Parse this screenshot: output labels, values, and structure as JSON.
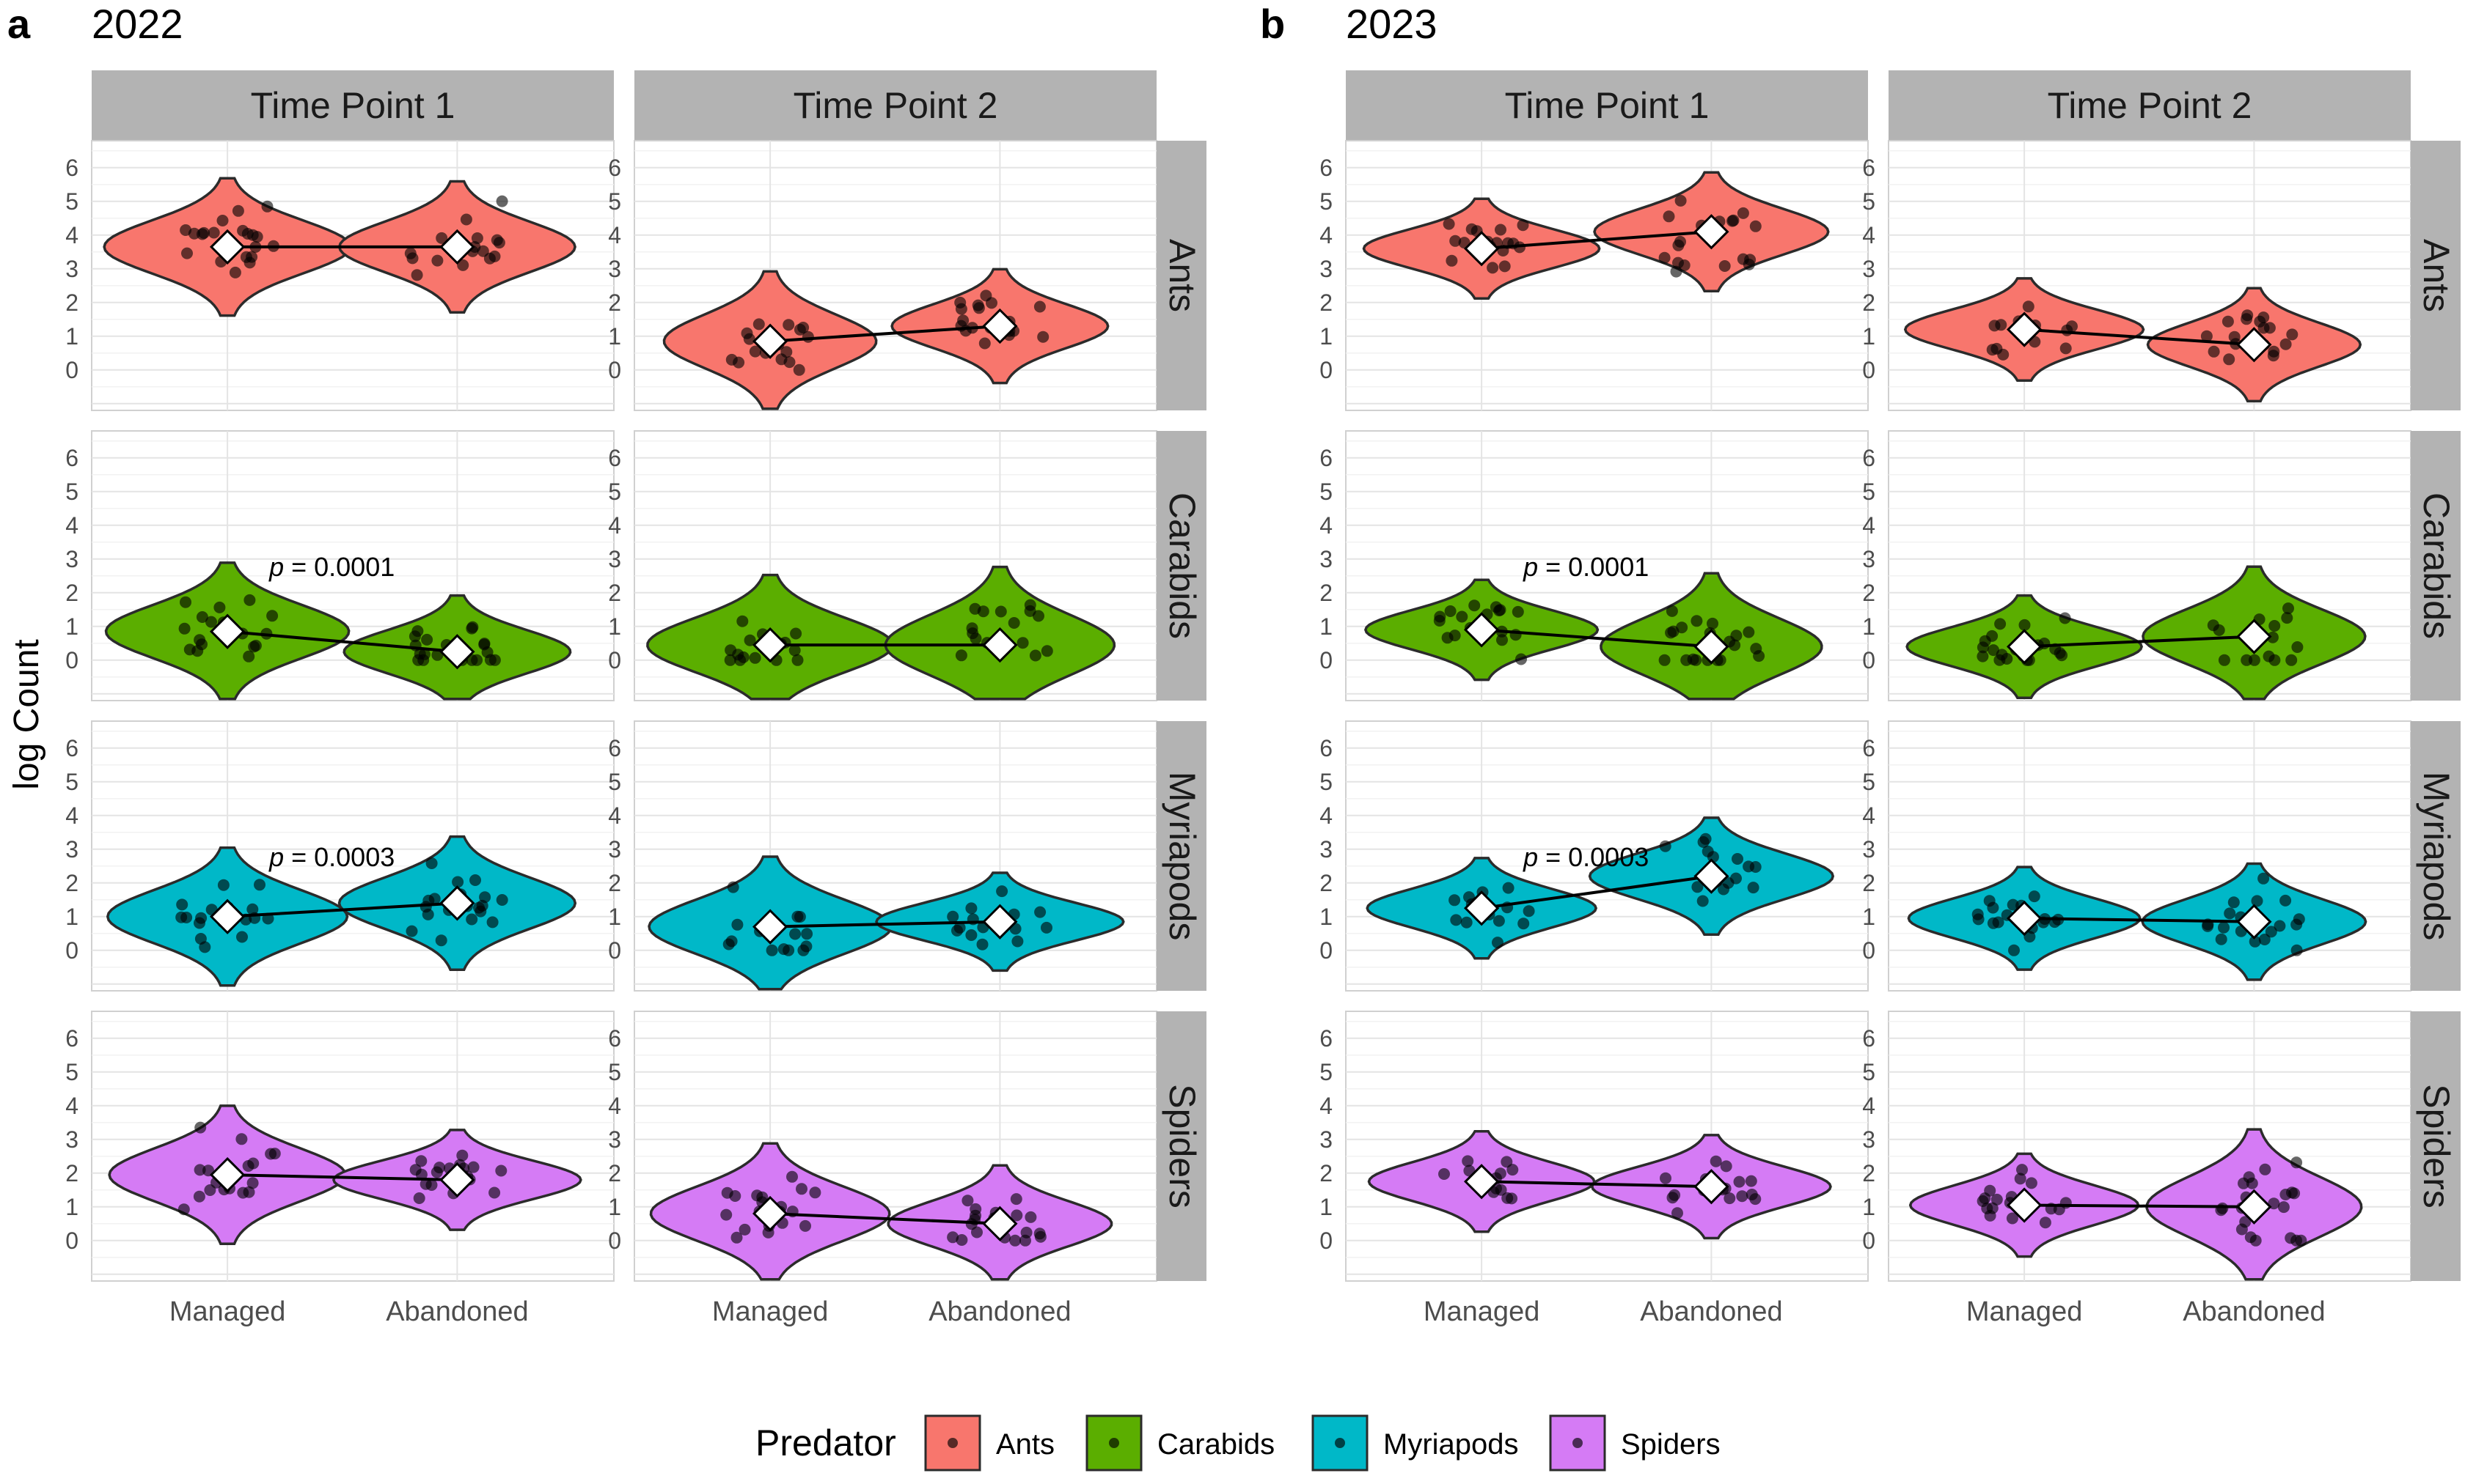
{
  "y_axis_label": "log Count",
  "y_ticks": [
    "0",
    "1",
    "2",
    "3",
    "4",
    "5",
    "6"
  ],
  "legend": {
    "title": "Predator",
    "items": [
      {
        "label": "Ants",
        "color": "#F8766D"
      },
      {
        "label": "Carabids",
        "color": "#5BAE00"
      },
      {
        "label": "Myriapods",
        "color": "#00B8C8"
      },
      {
        "label": "Spiders",
        "color": "#D57BF5"
      }
    ]
  },
  "chart_data": [
    {
      "type": "violin",
      "panel_letter": "a",
      "title": "2022",
      "columns": [
        "Time Point 1",
        "Time Point 2"
      ],
      "rows": [
        "Ants",
        "Carabids",
        "Myriapods",
        "Spiders"
      ],
      "categories": [
        "Managed",
        "Abandoned"
      ],
      "ylabel": "log Count",
      "ylim": [
        -1.2,
        6.8
      ],
      "means": {
        "Time Point 1": {
          "Ants": [
            3.65,
            3.65
          ],
          "Carabids": [
            0.85,
            0.25
          ],
          "Myriapods": [
            1.0,
            1.4
          ],
          "Spiders": [
            1.95,
            1.8
          ]
        },
        "Time Point 2": {
          "Ants": [
            0.85,
            1.3
          ],
          "Carabids": [
            0.45,
            0.45
          ],
          "Myriapods": [
            0.7,
            0.85
          ],
          "Spiders": [
            0.8,
            0.5
          ]
        }
      },
      "annotations": [
        {
          "column": "Time Point 1",
          "row": "Carabids",
          "p_label": "p",
          "p_value": "= 0.0001"
        },
        {
          "column": "Time Point 1",
          "row": "Myriapods",
          "p_label": "p",
          "p_value": "= 0.0003"
        }
      ]
    },
    {
      "type": "violin",
      "panel_letter": "b",
      "title": "2023",
      "columns": [
        "Time Point 1",
        "Time Point 2"
      ],
      "rows": [
        "Ants",
        "Carabids",
        "Myriapods",
        "Spiders"
      ],
      "categories": [
        "Managed",
        "Abandoned"
      ],
      "ylabel": "log Count",
      "ylim": [
        -1.2,
        6.8
      ],
      "means": {
        "Time Point 1": {
          "Ants": [
            3.6,
            4.1
          ],
          "Carabids": [
            0.9,
            0.4
          ],
          "Myriapods": [
            1.25,
            2.2
          ],
          "Spiders": [
            1.75,
            1.6
          ]
        },
        "Time Point 2": {
          "Ants": [
            1.2,
            0.75
          ],
          "Carabids": [
            0.4,
            0.7
          ],
          "Myriapods": [
            0.95,
            0.85
          ],
          "Spiders": [
            1.05,
            1.0
          ]
        }
      },
      "annotations": [
        {
          "column": "Time Point 1",
          "row": "Carabids",
          "p_label": "p",
          "p_value": "= 0.0001"
        },
        {
          "column": "Time Point 1",
          "row": "Myriapods",
          "p_label": "p",
          "p_value": "= 0.0003"
        }
      ]
    }
  ]
}
